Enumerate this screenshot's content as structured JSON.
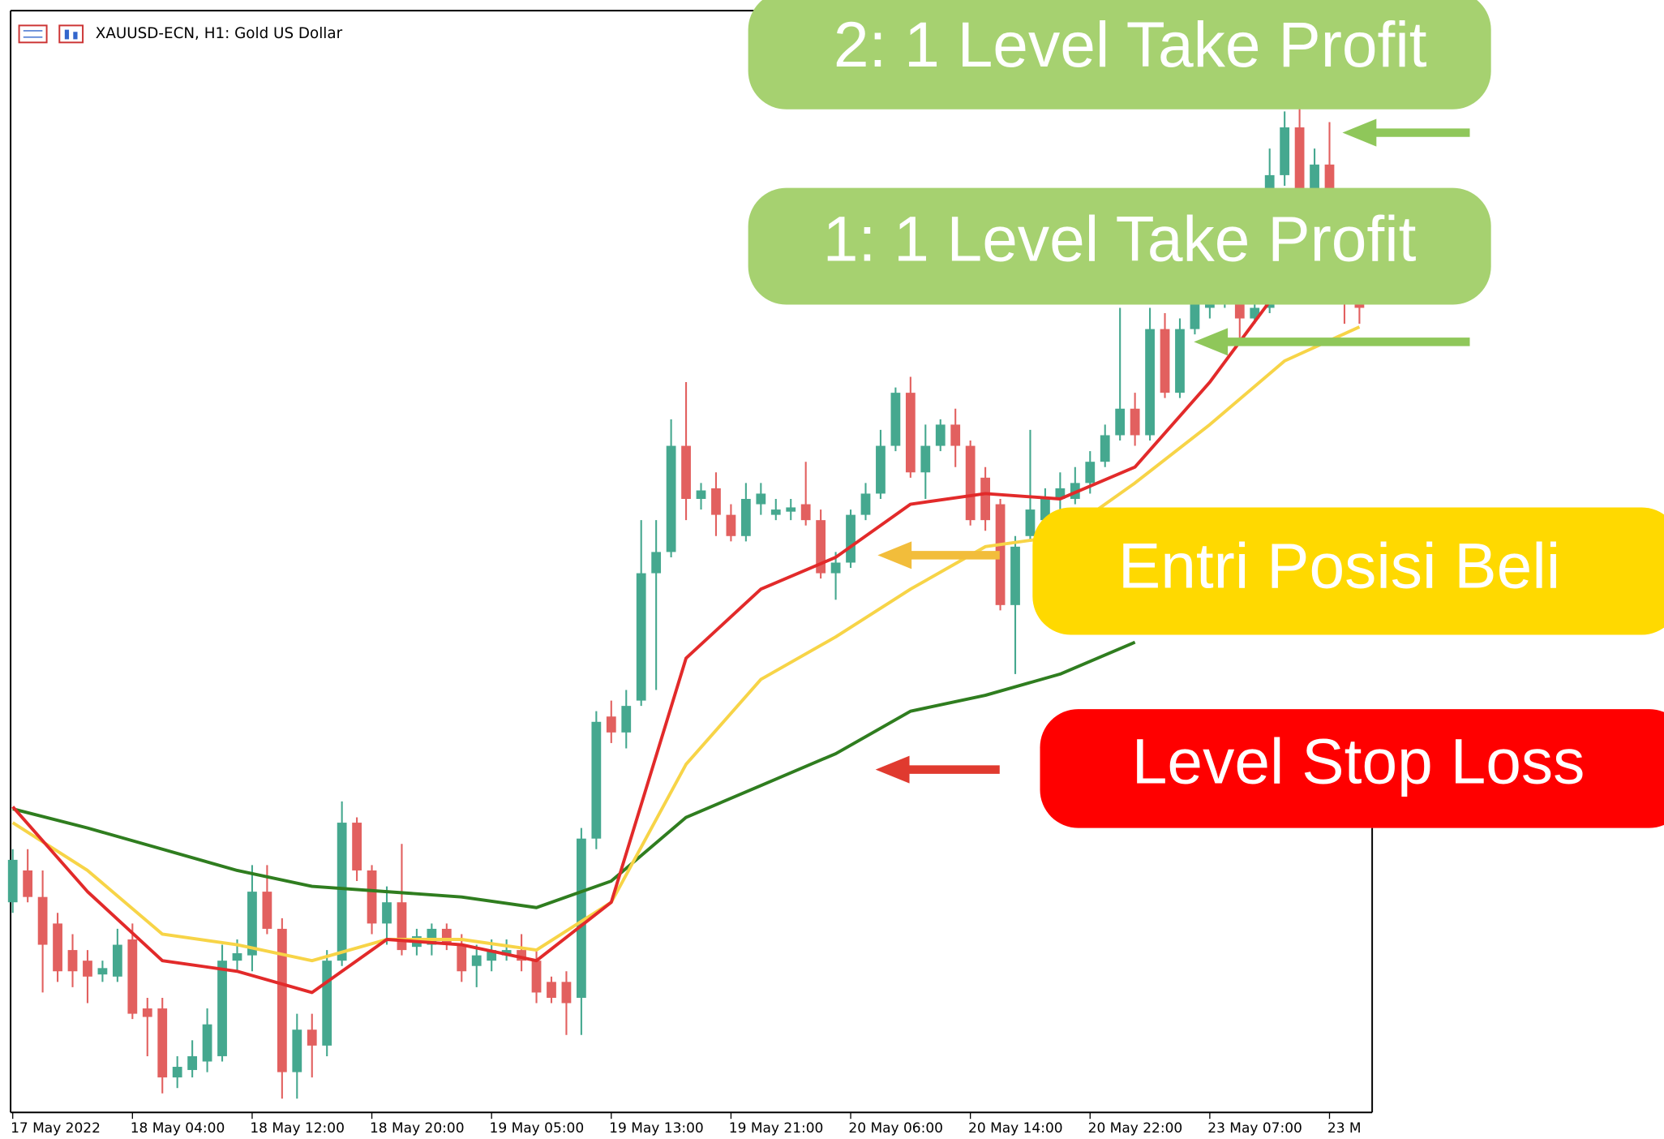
{
  "chart_data": {
    "type": "candlestick",
    "title": "XAUUSD-ECN, H1:  Gold US Dollar",
    "ylim": [
      0,
      1040
    ],
    "up_color": "#45a88f",
    "down_color": "#e2605f",
    "categories": [
      "17 May 2022",
      null,
      null,
      null,
      null,
      null,
      null,
      null,
      "18 May 04:00",
      null,
      null,
      null,
      null,
      null,
      null,
      null,
      "18 May 12:00",
      null,
      null,
      null,
      null,
      null,
      null,
      null,
      "18 May 20:00",
      null,
      null,
      null,
      null,
      null,
      null,
      null,
      "19 May 05:00",
      null,
      null,
      null,
      null,
      null,
      null,
      null,
      "19 May 13:00",
      null,
      null,
      null,
      null,
      null,
      null,
      null,
      "19 May 21:00",
      null,
      null,
      null,
      null,
      null,
      null,
      null,
      "20 May 06:00",
      null,
      null,
      null,
      null,
      null,
      null,
      null,
      "20 May 14:00",
      null,
      null,
      null,
      null,
      null,
      null,
      null,
      "20 May 22:00",
      null,
      null,
      null,
      null,
      null,
      null,
      null,
      "23 May 07:00",
      null,
      null,
      null,
      null,
      null,
      null,
      null,
      "23 M",
      null,
      null
    ],
    "open": [
      200,
      230,
      205,
      180,
      155,
      145,
      132,
      130,
      165,
      100,
      100,
      35,
      42,
      50,
      55,
      145,
      150,
      210,
      175,
      40,
      80,
      65,
      145,
      275,
      230,
      180,
      200,
      158,
      160,
      175,
      160,
      140,
      145,
      150,
      155,
      145,
      125,
      125,
      110,
      260,
      375,
      360,
      390,
      510,
      530,
      630,
      580,
      590,
      565,
      545,
      575,
      565,
      568,
      575,
      560,
      510,
      520,
      565,
      585,
      630,
      680,
      605,
      630,
      650,
      630,
      600,
      575,
      480,
      545,
      560,
      580,
      580,
      595,
      615,
      640,
      665,
      640,
      740,
      680,
      740,
      760,
      765,
      765,
      750,
      760,
      885,
      930,
      850,
      895,
      850,
      765
    ],
    "high": [
      250,
      250,
      230,
      190,
      170,
      155,
      145,
      175,
      180,
      110,
      110,
      55,
      70,
      100,
      160,
      165,
      235,
      235,
      185,
      95,
      95,
      155,
      295,
      280,
      235,
      215,
      255,
      175,
      180,
      180,
      170,
      160,
      165,
      165,
      170,
      155,
      130,
      135,
      270,
      380,
      390,
      400,
      560,
      560,
      655,
      690,
      595,
      605,
      575,
      595,
      595,
      580,
      580,
      615,
      570,
      530,
      570,
      595,
      645,
      685,
      695,
      650,
      655,
      665,
      635,
      610,
      580,
      545,
      645,
      590,
      605,
      610,
      625,
      650,
      760,
      680,
      760,
      755,
      750,
      775,
      785,
      790,
      775,
      780,
      910,
      945,
      950,
      910,
      935,
      860,
      770
    ],
    "low": [
      190,
      200,
      115,
      125,
      120,
      105,
      125,
      125,
      90,
      55,
      20,
      25,
      35,
      40,
      50,
      135,
      135,
      170,
      15,
      15,
      35,
      55,
      140,
      220,
      170,
      160,
      150,
      150,
      150,
      155,
      125,
      120,
      135,
      145,
      135,
      105,
      105,
      75,
      75,
      250,
      350,
      345,
      385,
      400,
      525,
      560,
      570,
      545,
      540,
      540,
      565,
      560,
      560,
      555,
      505,
      485,
      515,
      560,
      580,
      625,
      600,
      580,
      625,
      610,
      555,
      550,
      475,
      415,
      540,
      555,
      570,
      575,
      585,
      610,
      635,
      630,
      635,
      675,
      675,
      735,
      750,
      760,
      730,
      745,
      755,
      875,
      845,
      845,
      840,
      745,
      745
    ],
    "close": [
      240,
      205,
      160,
      135,
      135,
      130,
      138,
      160,
      95,
      92,
      35,
      45,
      55,
      85,
      145,
      152,
      210,
      175,
      40,
      80,
      65,
      145,
      275,
      230,
      180,
      200,
      155,
      168,
      175,
      160,
      135,
      150,
      155,
      155,
      145,
      115,
      110,
      105,
      260,
      370,
      360,
      385,
      510,
      530,
      630,
      580,
      588,
      565,
      545,
      580,
      585,
      570,
      572,
      560,
      510,
      520,
      565,
      585,
      630,
      680,
      605,
      630,
      650,
      630,
      560,
      560,
      480,
      535,
      570,
      580,
      590,
      595,
      615,
      640,
      665,
      640,
      740,
      680,
      740,
      765,
      775,
      780,
      750,
      760,
      885,
      930,
      850,
      895,
      850,
      765,
      760
    ],
    "series": [
      {
        "color": "#2f7d1f",
        "x": [
          0,
          5,
          10,
          15,
          20,
          25,
          30,
          35,
          40,
          45,
          50,
          55,
          60,
          65,
          70,
          75
        ],
        "values": [
          288,
          270,
          250,
          230,
          215,
          210,
          205,
          195,
          220,
          280,
          310,
          340,
          380,
          395,
          415,
          445
        ]
      },
      {
        "color": "#f7d447",
        "x": [
          0,
          5,
          10,
          15,
          20,
          25,
          30,
          35,
          40,
          45,
          50,
          55,
          60,
          65,
          70,
          75,
          80,
          85,
          90
        ],
        "values": [
          275,
          230,
          170,
          160,
          145,
          165,
          165,
          155,
          200,
          330,
          410,
          450,
          495,
          535,
          545,
          595,
          650,
          710,
          742
        ]
      },
      {
        "color": "#e22a2a",
        "x": [
          0,
          5,
          10,
          15,
          20,
          25,
          30,
          35,
          40,
          45,
          50,
          55,
          60,
          65,
          70,
          75,
          80,
          85
        ],
        "values": [
          290,
          210,
          145,
          135,
          115,
          165,
          160,
          145,
          200,
          430,
          495,
          525,
          575,
          585,
          580,
          610,
          690,
          785
        ]
      }
    ],
    "annotations": [
      {
        "text": "2: 1 Level Take Profit",
        "color": "#a6d170"
      },
      {
        "text": "1: 1 Level Take Profit",
        "color": "#a6d170"
      },
      {
        "text": "Entri Posisi Beli",
        "color": "#ffd900"
      },
      {
        "text": "Level Stop Loss",
        "color": "#ff0000"
      }
    ]
  }
}
